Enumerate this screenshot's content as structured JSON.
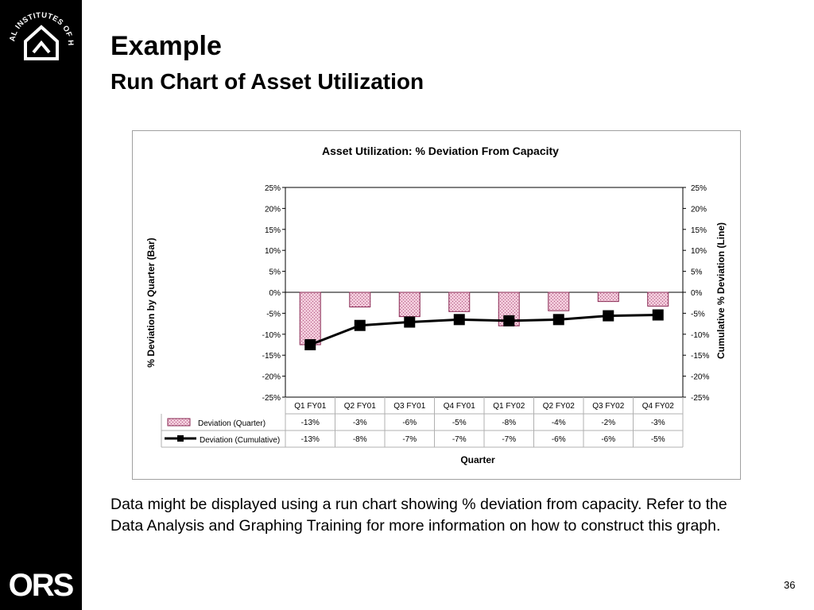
{
  "slide": {
    "title": "Example",
    "subtitle": "Run Chart of Asset Utilization",
    "description": "Data might be displayed using a run chart showing % deviation from capacity. Refer to the Data Analysis and Graphing Training for more information on how to construct this graph.",
    "page_number": "36",
    "logo_top": "NATIONAL INSTITUTES OF HEALTH",
    "logo_bottom": "ORS"
  },
  "colors": {
    "sidebar": "#000000",
    "bar_fill": "#f0c8d8",
    "bar_stroke": "#8a2b55",
    "line": "#000000",
    "frame": "#a0a0a0"
  },
  "chart_data": {
    "type": "bar",
    "title": "Asset Utilization:  % Deviation From Capacity",
    "xlabel": "Quarter",
    "ylabel": "% Deviation by Quarter (Bar)",
    "y2label": "Cumulative % Deviation (Line)",
    "categories": [
      "Q1 FY01",
      "Q2 FY01",
      "Q3 FY01",
      "Q4 FY01",
      "Q1 FY02",
      "Q2 FY02",
      "Q3 FY02",
      "Q4 FY02"
    ],
    "ylim": [
      -25,
      25
    ],
    "y2lim": [
      -25,
      25
    ],
    "yticks": [
      "25%",
      "20%",
      "15%",
      "10%",
      "5%",
      "0%",
      "-5%",
      "-10%",
      "-15%",
      "-20%",
      "-25%"
    ],
    "grid": false,
    "legend": "data table, left",
    "series": [
      {
        "name": "Deviation (Quarter)",
        "type": "bar",
        "values": [
          -12.5,
          -3.5,
          -5.8,
          -4.6,
          -8.0,
          -4.4,
          -2.2,
          -3.3
        ],
        "labels": [
          "-13%",
          "-3%",
          "-6%",
          "-5%",
          "-8%",
          "-4%",
          "-2%",
          "-3%"
        ]
      },
      {
        "name": "Deviation (Cumulative)",
        "type": "line",
        "axis": "secondary",
        "values": [
          -12.5,
          -7.9,
          -7.1,
          -6.5,
          -6.8,
          -6.5,
          -5.6,
          -5.4
        ],
        "labels": [
          "-13%",
          "-8%",
          "-7%",
          "-7%",
          "-7%",
          "-6%",
          "-6%",
          "-5%"
        ]
      }
    ]
  }
}
